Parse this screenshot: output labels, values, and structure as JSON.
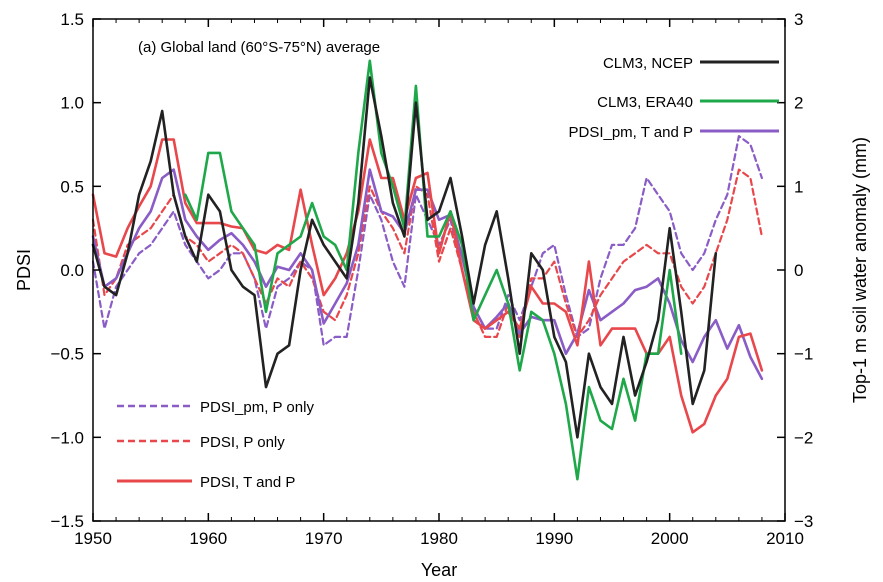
{
  "chart_data": {
    "type": "line",
    "title": "(a) Global land (60°S-75°N) average",
    "xlabel": "Year",
    "ylabel": "PDSI",
    "y2label": "Top-1 m soil water anomaly (mm)",
    "xlim": [
      1950,
      2010
    ],
    "ylim": [
      -1.5,
      1.5
    ],
    "y2lim": [
      -3,
      3
    ],
    "xticks": [
      1950,
      1960,
      1970,
      1980,
      1990,
      2000,
      2010
    ],
    "yticks": [
      -1.5,
      -1.0,
      -0.5,
      0.0,
      0.5,
      1.0,
      1.5
    ],
    "y2ticks": [
      -3,
      -2,
      -1,
      0,
      1,
      2,
      3
    ],
    "grid": false,
    "legend": [
      {
        "name": "CLM3, NCEP",
        "placement": "top-right"
      },
      {
        "name": "CLM3, ERA40",
        "placement": "top-right"
      },
      {
        "name": "PDSI_pm, T and P",
        "placement": "top-right"
      },
      {
        "name": "PDSI_pm, P only",
        "placement": "bottom-left"
      },
      {
        "name": "PDSI, P only",
        "placement": "bottom-left"
      },
      {
        "name": "PDSI, T and P",
        "placement": "bottom-left"
      }
    ],
    "series": [
      {
        "name": "CLM3, NCEP",
        "color": "#222222",
        "dash": false,
        "axis": "right",
        "x": [
          1950,
          1951,
          1952,
          1953,
          1954,
          1955,
          1956,
          1957,
          1958,
          1959,
          1960,
          1961,
          1962,
          1963,
          1964,
          1965,
          1966,
          1967,
          1968,
          1969,
          1970,
          1971,
          1972,
          1973,
          1974,
          1975,
          1976,
          1977,
          1978,
          1979,
          1980,
          1981,
          1982,
          1983,
          1984,
          1985,
          1986,
          1987,
          1988,
          1989,
          1990,
          1991,
          1992,
          1993,
          1994,
          1995,
          1996,
          1997,
          1998,
          1999,
          2000,
          2001,
          2002,
          2003,
          2004
        ],
        "values": [
          0.3,
          -0.2,
          -0.3,
          0.2,
          0.9,
          1.3,
          1.9,
          0.9,
          0.4,
          0.1,
          0.9,
          0.7,
          0.0,
          -0.2,
          -0.3,
          -1.4,
          -1.0,
          -0.9,
          0.0,
          0.6,
          0.3,
          0.1,
          -0.1,
          0.8,
          2.3,
          1.6,
          0.8,
          0.4,
          2.0,
          0.6,
          0.7,
          1.1,
          0.4,
          -0.4,
          0.3,
          0.7,
          -0.1,
          -1.0,
          0.2,
          0.0,
          -0.8,
          -1.1,
          -2.0,
          -1.0,
          -1.4,
          -1.6,
          -0.8,
          -1.5,
          -1.1,
          -0.6,
          0.5,
          -0.5,
          -1.6,
          -1.2,
          0.2
        ]
      },
      {
        "name": "CLM3, ERA40",
        "color": "#1fa84a",
        "dash": false,
        "axis": "right",
        "x": [
          1958,
          1959,
          1960,
          1961,
          1962,
          1963,
          1964,
          1965,
          1966,
          1967,
          1968,
          1969,
          1970,
          1971,
          1972,
          1973,
          1974,
          1975,
          1976,
          1977,
          1978,
          1979,
          1980,
          1981,
          1982,
          1983,
          1984,
          1985,
          1986,
          1987,
          1988,
          1989,
          1990,
          1991,
          1992,
          1993,
          1994,
          1995,
          1996,
          1997,
          1998,
          1999,
          2000,
          2001
        ],
        "values": [
          0.9,
          0.6,
          1.4,
          1.4,
          0.7,
          0.5,
          0.3,
          -0.5,
          0.2,
          0.3,
          0.4,
          0.8,
          0.4,
          0.3,
          0.0,
          1.4,
          2.5,
          1.4,
          1.0,
          0.5,
          2.2,
          0.4,
          0.4,
          0.7,
          0.3,
          -0.6,
          -0.3,
          0.0,
          -0.4,
          -1.2,
          -0.5,
          -0.6,
          -1.0,
          -1.6,
          -2.5,
          -1.4,
          -1.8,
          -1.9,
          -1.3,
          -1.8,
          -1.0,
          -1.0,
          0.0,
          -1.0
        ]
      },
      {
        "name": "PDSI_pm, T and P",
        "color": "#8a5cc6",
        "dash": false,
        "axis": "left",
        "x": [
          1950,
          1951,
          1952,
          1953,
          1954,
          1955,
          1956,
          1957,
          1958,
          1959,
          1960,
          1961,
          1962,
          1963,
          1964,
          1965,
          1966,
          1967,
          1968,
          1969,
          1970,
          1971,
          1972,
          1973,
          1974,
          1975,
          1976,
          1977,
          1978,
          1979,
          1980,
          1981,
          1982,
          1983,
          1984,
          1985,
          1986,
          1987,
          1988,
          1989,
          1990,
          1991,
          1992,
          1993,
          1994,
          1995,
          1996,
          1997,
          1998,
          1999,
          2000,
          2001,
          2002,
          2003,
          2004,
          2005,
          2006,
          2007,
          2008
        ],
        "values": [
          0.2,
          -0.1,
          -0.05,
          0.1,
          0.25,
          0.35,
          0.55,
          0.6,
          0.3,
          0.2,
          0.12,
          0.18,
          0.22,
          0.15,
          0.05,
          -0.1,
          0.02,
          0.0,
          0.1,
          0.0,
          -0.32,
          -0.2,
          -0.08,
          0.15,
          0.6,
          0.35,
          0.32,
          0.22,
          0.48,
          0.48,
          0.3,
          0.33,
          0.08,
          -0.22,
          -0.35,
          -0.28,
          -0.2,
          -0.38,
          -0.28,
          -0.3,
          -0.3,
          -0.5,
          -0.38,
          -0.12,
          -0.3,
          -0.25,
          -0.2,
          -0.12,
          -0.1,
          -0.05,
          -0.2,
          -0.42,
          -0.55,
          -0.4,
          -0.3,
          -0.47,
          -0.33,
          -0.52,
          -0.65
        ]
      },
      {
        "name": "PDSI_pm, P only",
        "color": "#8a5cc6",
        "dash": true,
        "axis": "left",
        "x": [
          1950,
          1951,
          1952,
          1953,
          1954,
          1955,
          1956,
          1957,
          1958,
          1959,
          1960,
          1961,
          1962,
          1963,
          1964,
          1965,
          1966,
          1967,
          1968,
          1969,
          1970,
          1971,
          1972,
          1973,
          1974,
          1975,
          1976,
          1977,
          1978,
          1979,
          1980,
          1981,
          1982,
          1983,
          1984,
          1985,
          1986,
          1987,
          1988,
          1989,
          1990,
          1991,
          1992,
          1993,
          1994,
          1995,
          1996,
          1997,
          1998,
          1999,
          2000,
          2001,
          2002,
          2003,
          2004,
          2005,
          2006,
          2007,
          2008
        ],
        "values": [
          0.05,
          -0.35,
          -0.1,
          0.0,
          0.1,
          0.15,
          0.25,
          0.35,
          0.15,
          0.05,
          -0.05,
          0.0,
          0.1,
          0.1,
          -0.05,
          -0.35,
          -0.1,
          -0.05,
          0.05,
          0.0,
          -0.45,
          -0.4,
          -0.4,
          0.0,
          0.45,
          0.3,
          0.05,
          -0.1,
          0.45,
          0.3,
          0.15,
          0.3,
          0.0,
          -0.3,
          -0.35,
          -0.35,
          -0.15,
          -0.3,
          -0.1,
          0.1,
          0.15,
          -0.15,
          -0.4,
          -0.35,
          -0.05,
          0.15,
          0.15,
          0.25,
          0.55,
          0.45,
          0.35,
          0.1,
          0.0,
          0.1,
          0.3,
          0.45,
          0.8,
          0.75,
          0.55
        ]
      },
      {
        "name": "PDSI, P only",
        "color": "#e8474b",
        "dash": true,
        "axis": "left",
        "x": [
          1950,
          1951,
          1952,
          1953,
          1954,
          1955,
          1956,
          1957,
          1958,
          1959,
          1960,
          1961,
          1962,
          1963,
          1964,
          1965,
          1966,
          1967,
          1968,
          1969,
          1970,
          1971,
          1972,
          1973,
          1974,
          1975,
          1976,
          1977,
          1978,
          1979,
          1980,
          1981,
          1982,
          1983,
          1984,
          1985,
          1986,
          1987,
          1988,
          1989,
          1990,
          1991,
          1992,
          1993,
          1994,
          1995,
          1996,
          1997,
          1998,
          1999,
          2000,
          2001,
          2002,
          2003,
          2004,
          2005,
          2006,
          2007,
          2008
        ],
        "values": [
          0.3,
          -0.15,
          -0.05,
          0.15,
          0.2,
          0.25,
          0.35,
          0.45,
          0.2,
          0.15,
          0.05,
          0.1,
          0.15,
          0.1,
          -0.05,
          -0.2,
          -0.05,
          -0.1,
          0.05,
          -0.05,
          -0.25,
          -0.3,
          -0.15,
          0.1,
          0.5,
          0.35,
          0.25,
          0.1,
          0.5,
          0.45,
          0.05,
          0.25,
          0.0,
          -0.25,
          -0.4,
          -0.4,
          -0.2,
          -0.4,
          -0.05,
          -0.05,
          0.05,
          -0.2,
          -0.4,
          -0.3,
          -0.15,
          -0.05,
          0.05,
          0.1,
          0.15,
          0.1,
          0.1,
          -0.1,
          -0.2,
          -0.1,
          0.1,
          0.3,
          0.6,
          0.55,
          0.2
        ]
      },
      {
        "name": "PDSI, T and P",
        "color": "#e8474b",
        "dash": false,
        "axis": "left",
        "x": [
          1950,
          1951,
          1952,
          1953,
          1954,
          1955,
          1956,
          1957,
          1958,
          1959,
          1960,
          1961,
          1962,
          1963,
          1964,
          1965,
          1966,
          1967,
          1968,
          1969,
          1970,
          1971,
          1972,
          1973,
          1974,
          1975,
          1976,
          1977,
          1978,
          1979,
          1980,
          1981,
          1982,
          1983,
          1984,
          1985,
          1986,
          1987,
          1988,
          1989,
          1990,
          1991,
          1992,
          1993,
          1994,
          1995,
          1996,
          1997,
          1998,
          1999,
          2000,
          2001,
          2002,
          2003,
          2004,
          2005,
          2006,
          2007,
          2008
        ],
        "values": [
          0.45,
          0.1,
          0.08,
          0.25,
          0.38,
          0.5,
          0.78,
          0.78,
          0.4,
          0.28,
          0.28,
          0.28,
          0.26,
          0.25,
          0.12,
          0.1,
          0.15,
          0.12,
          0.48,
          0.15,
          -0.15,
          -0.05,
          0.1,
          0.35,
          0.78,
          0.55,
          0.55,
          0.3,
          0.55,
          0.58,
          0.1,
          0.35,
          0.0,
          -0.3,
          -0.35,
          -0.3,
          -0.25,
          -0.35,
          -0.1,
          -0.2,
          -0.2,
          -0.25,
          -0.45,
          0.05,
          -0.45,
          -0.35,
          -0.35,
          -0.35,
          -0.5,
          -0.5,
          -0.4,
          -0.75,
          -0.97,
          -0.92,
          -0.75,
          -0.65,
          -0.4,
          -0.38,
          -0.6
        ]
      }
    ]
  }
}
